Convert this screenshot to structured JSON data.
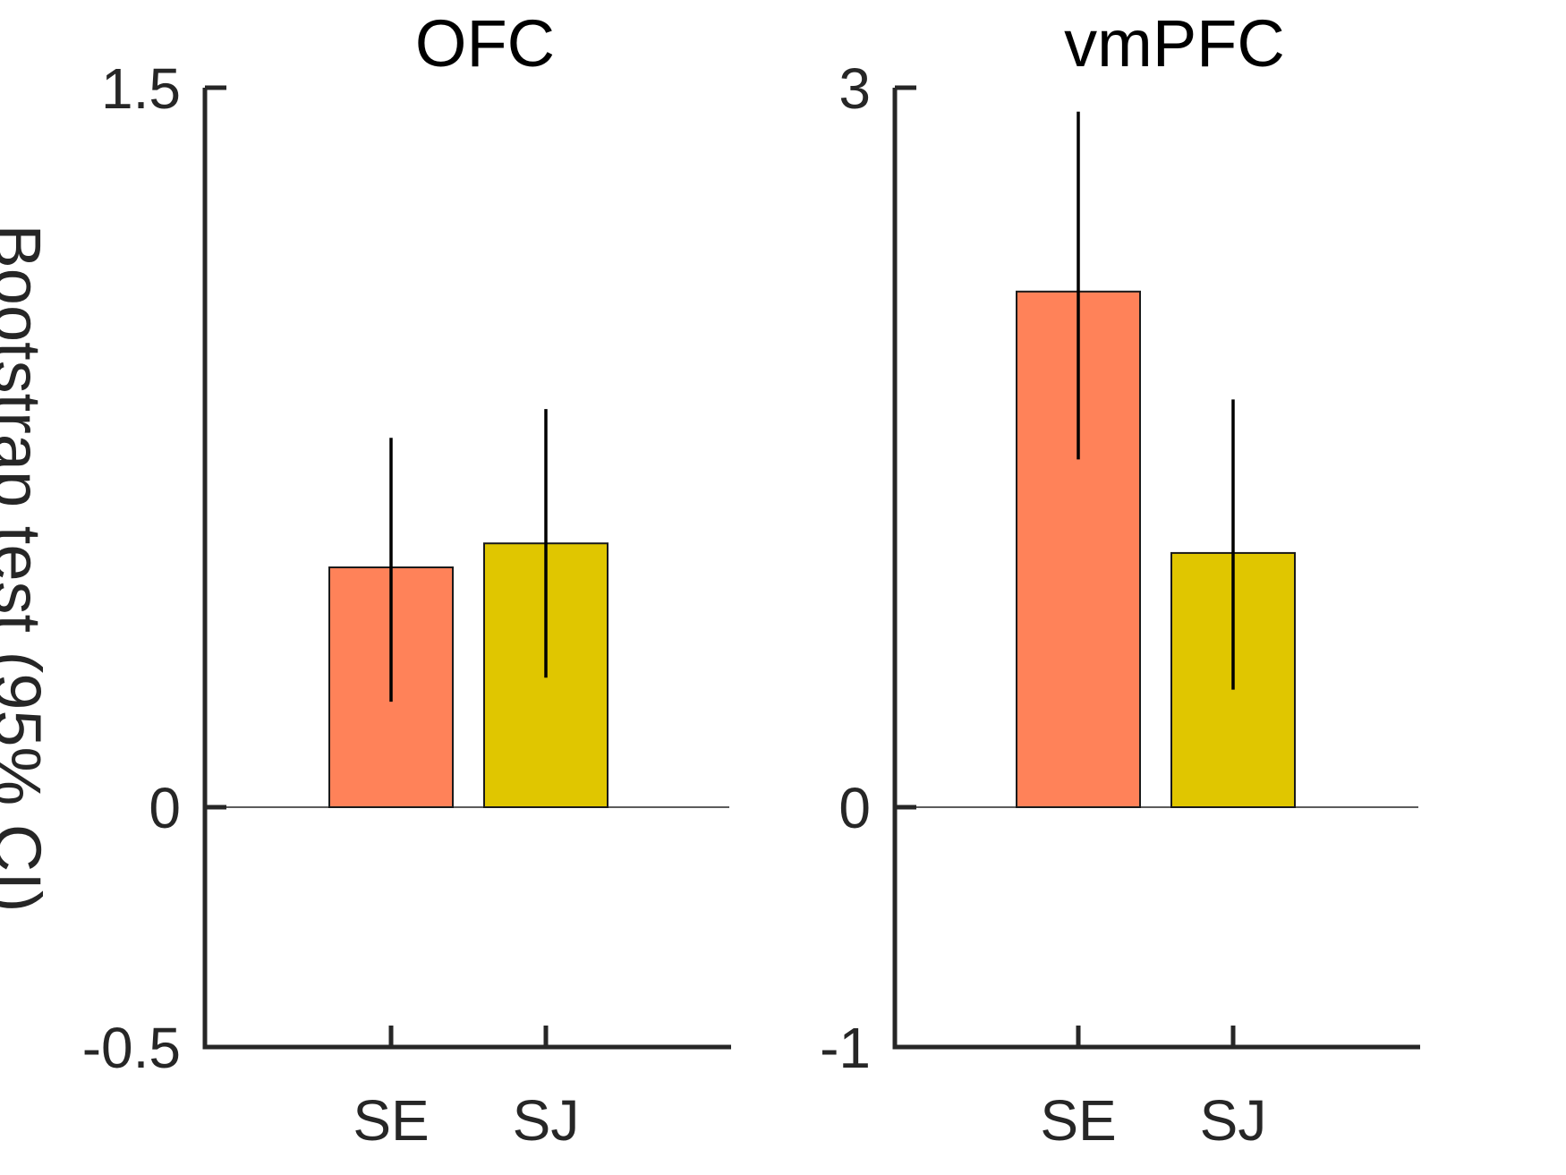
{
  "ylabel": "Bootstrap test (95% CI)",
  "chart_data": [
    {
      "type": "bar",
      "title": "OFC",
      "xlabel": "",
      "ylabel": "Bootstrap test (95% CI)",
      "categories": [
        "SE",
        "SJ"
      ],
      "values": [
        0.5,
        0.55
      ],
      "ci_low": [
        0.22,
        0.27
      ],
      "ci_high": [
        0.77,
        0.83
      ],
      "ylim": [
        -0.5,
        1.5
      ],
      "yticks": [
        "-0.5",
        "0",
        "1.5"
      ],
      "ytick_values": [
        -0.5,
        0,
        1.5
      ],
      "colors": [
        "#ff8259",
        "#e0c600"
      ],
      "grid": false
    },
    {
      "type": "bar",
      "title": "vmPFC",
      "xlabel": "",
      "ylabel": "",
      "categories": [
        "SE",
        "SJ"
      ],
      "values": [
        2.15,
        1.06
      ],
      "ci_low": [
        1.45,
        0.49
      ],
      "ci_high": [
        2.9,
        1.7
      ],
      "ylim": [
        -1,
        3
      ],
      "yticks": [
        "-1",
        "0",
        "3"
      ],
      "ytick_values": [
        -1,
        0,
        3
      ],
      "colors": [
        "#ff8259",
        "#e0c600"
      ],
      "grid": false
    }
  ]
}
